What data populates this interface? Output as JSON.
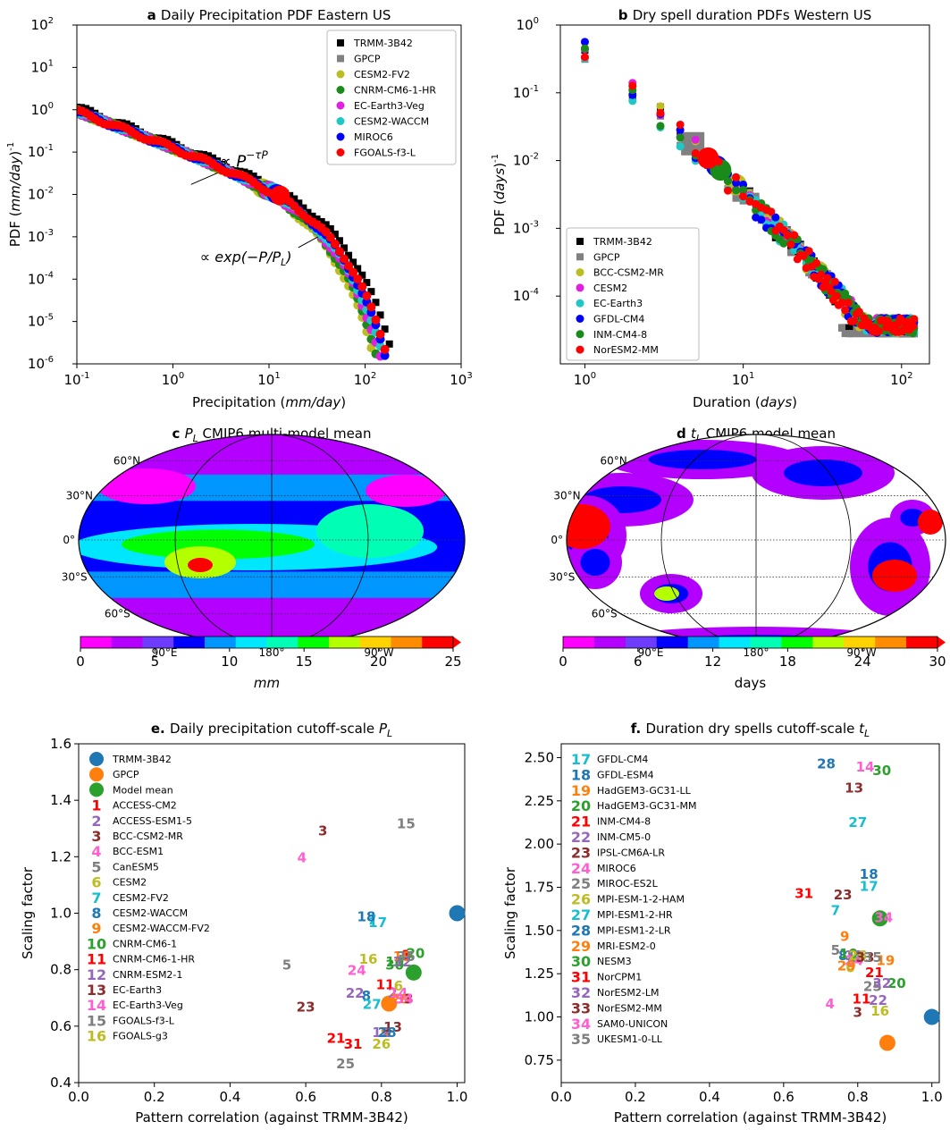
{
  "chart_data": [
    {
      "id": "a",
      "type": "scatter",
      "title_prefix": "a",
      "title": "Daily Precipitation PDF Eastern US",
      "xlabel_pre": "Precipitation (",
      "xlabel_unit": "mm/day",
      "xlabel_post": ")",
      "ylabel_pre": "PDF (",
      "ylabel_unit": "mm/day",
      "ylabel_post": ")",
      "ylabel_exp": "-1",
      "xscale": "log",
      "yscale": "log",
      "xlim": [
        0.1,
        1000
      ],
      "ylim": [
        1e-06,
        100
      ],
      "xticks_exp": [
        "-1",
        "0",
        "1",
        "2",
        "3"
      ],
      "yticks_exp": [
        "-6",
        "-5",
        "-4",
        "-3",
        "-2",
        "-1",
        "0",
        "1",
        "2"
      ],
      "annotations": [
        {
          "text": "∝ P",
          "sup": "−τP",
          "near": [
            1.3,
            0.022
          ]
        },
        {
          "text": "∝ exp(−P/P",
          "sub": "L",
          "near": [
            25,
            0.0011
          ]
        }
      ],
      "legend": "top-right",
      "series": [
        {
          "name": "TRMM-3B42",
          "color": "#000000",
          "marker": "square"
        },
        {
          "name": "GPCP",
          "color": "#808080",
          "marker": "square"
        },
        {
          "name": "CESM2-FV2",
          "color": "#bcbd22",
          "marker": "circle",
          "cutoff": 8.5
        },
        {
          "name": "CNRM-CM6-1-HR",
          "color": "#1a8a1a",
          "marker": "circle",
          "cutoff": 9.5
        },
        {
          "name": "EC-Earth3-Veg",
          "color": "#e01fe0",
          "marker": "circle",
          "cutoff": 10
        },
        {
          "name": "CESM2-WACCM",
          "color": "#1fc7c7",
          "marker": "circle",
          "cutoff": 11
        },
        {
          "name": "MIROC6",
          "color": "#0000ff",
          "marker": "circle",
          "cutoff": 12
        },
        {
          "name": "FGOALS-f3-L",
          "color": "#ff0000",
          "marker": "circle",
          "cutoff": 13
        }
      ]
    },
    {
      "id": "b",
      "type": "scatter",
      "title_prefix": "b",
      "title": "Dry spell duration PDFs Western US",
      "xlabel_pre": "Duration (",
      "xlabel_unit": "days",
      "xlabel_post": ")",
      "ylabel_pre": "PDF (",
      "ylabel_unit": "days",
      "ylabel_post": ")",
      "ylabel_exp": "-1",
      "xscale": "log",
      "yscale": "log",
      "xlim": [
        0.7,
        150
      ],
      "ylim": [
        1e-05,
        1
      ],
      "xticks_exp": [
        "0",
        "1",
        "2"
      ],
      "yticks_exp": [
        "-4",
        "-3",
        "-2",
        "-1",
        "0"
      ],
      "legend": "bottom-left",
      "series": [
        {
          "name": "TRMM-3B42",
          "color": "#000000",
          "marker": "square"
        },
        {
          "name": "GPCP",
          "color": "#808080",
          "marker": "square",
          "cutoff": 4.8
        },
        {
          "name": "BCC-CSM2-MR",
          "color": "#bcbd22",
          "marker": "circle",
          "cutoff": 9
        },
        {
          "name": "CESM2",
          "color": "#e01fe0",
          "marker": "circle"
        },
        {
          "name": "EC-Earth3",
          "color": "#1fc7c7",
          "marker": "circle"
        },
        {
          "name": "GFDL-CM4",
          "color": "#0000ff",
          "marker": "circle",
          "cutoff": 6.8
        },
        {
          "name": "INM-CM4-8",
          "color": "#1a8a1a",
          "marker": "circle",
          "cutoff": 7.2
        },
        {
          "name": "NorESM2-MM",
          "color": "#ff0000",
          "marker": "circle",
          "cutoff": 6
        }
      ]
    },
    {
      "id": "c",
      "type": "heatmap",
      "title_prefix": "c",
      "title_var": "P",
      "title_sub": "L",
      "title": " CMIP6 multi-model mean",
      "lat_labels": [
        "60°N",
        "30°N",
        "0°",
        "30°S",
        "60°S"
      ],
      "lon_labels": [
        "90°E",
        "180°",
        "90°W"
      ],
      "colorbar_ticks": [
        "0",
        "5",
        "10",
        "15",
        "20",
        "25"
      ],
      "colorbar_range": [
        0,
        25
      ],
      "colorbar_label": "mm",
      "colors": [
        "#ff00ff",
        "#b400ff",
        "#6e3cff",
        "#0000ff",
        "#0096ff",
        "#00e6ff",
        "#00ffb4",
        "#00ff00",
        "#b4ff00",
        "#ffd200",
        "#ff8c00",
        "#ff0000"
      ]
    },
    {
      "id": "d",
      "type": "heatmap",
      "title_prefix": "d",
      "title_var": "t",
      "title_sub": "L",
      "title": " CMIP6 model mean",
      "lat_labels": [
        "60°N",
        "30°N",
        "0°",
        "30°S",
        "60°S"
      ],
      "lon_labels": [
        "90°E",
        "180°",
        "90°W"
      ],
      "colorbar_ticks": [
        "0",
        "6",
        "12",
        "18",
        "24",
        "30"
      ],
      "colorbar_range": [
        0,
        30
      ],
      "colorbar_label": "days",
      "colors": [
        "#ff00ff",
        "#b400ff",
        "#6e3cff",
        "#0000ff",
        "#0096ff",
        "#00e6ff",
        "#00ffb4",
        "#00ff00",
        "#b4ff00",
        "#ffd200",
        "#ff8c00",
        "#ff0000"
      ]
    },
    {
      "id": "e",
      "type": "scatter",
      "title_prefix": "e.",
      "title": "Daily precipitation cutoff-scale ",
      "title_var": "P",
      "title_sub": "L",
      "xlabel": "Pattern correlation (against TRMM-3B42)",
      "ylabel": "Scaling factor",
      "xlim": [
        0.0,
        1.02
      ],
      "ylim": [
        0.4,
        1.6
      ],
      "xticks": [
        "0.0",
        "0.2",
        "0.4",
        "0.6",
        "0.8",
        "1.0"
      ],
      "yticks": [
        "0.4",
        "0.6",
        "0.8",
        "1.0",
        "1.2",
        "1.4",
        "1.6"
      ],
      "refs": [
        {
          "name": "TRMM-3B42",
          "color": "#1f77b4",
          "x": 1.0,
          "y": 1.0
        },
        {
          "name": "GPCP",
          "color": "#ff7f0e",
          "x": 0.82,
          "y": 0.68
        },
        {
          "name": "Model mean",
          "color": "#2ca02c",
          "x": 0.885,
          "y": 0.79
        }
      ],
      "models": [
        {
          "n": "1",
          "name": "ACCESS-CM2",
          "color": "#ff0000",
          "x": 0.865,
          "y": 0.855
        },
        {
          "n": "2",
          "name": "ACCESS-ESM1-5",
          "color": "#9467bd",
          "x": 0.83,
          "y": 0.72
        },
        {
          "n": "3",
          "name": "BCC-CSM2-MR",
          "color": "#8c2d2d",
          "x": 0.645,
          "y": 1.295
        },
        {
          "n": "4",
          "name": "BCC-ESM1",
          "color": "#ff5fd0",
          "x": 0.59,
          "y": 1.2
        },
        {
          "n": "5",
          "name": "CanESM5",
          "color": "#7f7f7f",
          "x": 0.55,
          "y": 0.82
        },
        {
          "n": "6",
          "name": "CESM2",
          "color": "#bcbd22",
          "x": 0.845,
          "y": 0.745
        },
        {
          "n": "7",
          "name": "CESM2-FV2",
          "color": "#17becf",
          "x": 0.775,
          "y": 0.98
        },
        {
          "n": "8",
          "name": "CESM2-WACCM",
          "color": "#1f77b4",
          "x": 0.76,
          "y": 0.71
        },
        {
          "n": "9",
          "name": "CESM2-WACCM-FV2",
          "color": "#ff7f0e",
          "x": 0.81,
          "y": 0.58
        },
        {
          "n": "10",
          "name": "CNRM-CM6-1",
          "color": "#2ca02c",
          "x": 0.835,
          "y": 0.83
        },
        {
          "n": "11",
          "name": "CNRM-CM6-1-HR",
          "color": "#ff0000",
          "x": 0.81,
          "y": 0.75
        },
        {
          "n": "12",
          "name": "CNRM-ESM2-1",
          "color": "#9467bd",
          "x": 0.8,
          "y": 0.58
        },
        {
          "n": "13",
          "name": "EC-Earth3",
          "color": "#8c2d2d",
          "x": 0.83,
          "y": 0.6
        },
        {
          "n": "14",
          "name": "EC-Earth3-Veg",
          "color": "#ff5fd0",
          "x": 0.845,
          "y": 0.72
        },
        {
          "n": "15",
          "name": "FGOALS-f3-L",
          "color": "#7f7f7f",
          "x": 0.865,
          "y": 1.32
        },
        {
          "n": "16",
          "name": "FGOALS-g3",
          "color": "#bcbd22",
          "x": 0.765,
          "y": 0.84
        },
        {
          "n": "17",
          "name": "GFDL-CM4",
          "color": "#17becf",
          "x": 0.79,
          "y": 0.97
        },
        {
          "n": "18",
          "name": "GFDL-ESM4",
          "color": "#1f77b4",
          "x": 0.76,
          "y": 0.99
        },
        {
          "n": "19",
          "name": "HadGEM3-GC31-LL",
          "color": "#ff7f0e",
          "x": 0.855,
          "y": 0.85
        },
        {
          "n": "20",
          "name": "HadGEM3-GC31-MM",
          "color": "#2ca02c",
          "x": 0.89,
          "y": 0.86
        },
        {
          "n": "21",
          "name": "INM-CM4-8",
          "color": "#ff0000",
          "x": 0.68,
          "y": 0.56
        },
        {
          "n": "22",
          "name": "INM-CM5-0",
          "color": "#9467bd",
          "x": 0.73,
          "y": 0.72
        },
        {
          "n": "23",
          "name": "IPSL-CM6A-LR",
          "color": "#8c2d2d",
          "x": 0.6,
          "y": 0.67
        },
        {
          "n": "24",
          "name": "MIROC6",
          "color": "#ff5fd0",
          "x": 0.735,
          "y": 0.8
        },
        {
          "n": "25",
          "name": "MIROC-ES2L",
          "color": "#7f7f7f",
          "x": 0.705,
          "y": 0.47
        },
        {
          "n": "26",
          "name": "MPI-ESM-1-2-HAM",
          "color": "#bcbd22",
          "x": 0.8,
          "y": 0.54
        },
        {
          "n": "27",
          "name": "MPI-ESM1-2-HR",
          "color": "#17becf",
          "x": 0.775,
          "y": 0.68
        },
        {
          "n": "28",
          "name": "MPI-ESM1-2-LR",
          "color": "#1f77b4",
          "x": 0.815,
          "y": 0.58
        },
        {
          "n": "29",
          "name": "MRI-ESM2-0",
          "color": "#ff7f0e",
          "x": 0.85,
          "y": 0.7
        },
        {
          "n": "30",
          "name": "NESM3",
          "color": "#2ca02c",
          "x": 0.835,
          "y": 0.82
        },
        {
          "n": "31",
          "name": "NorCPM1",
          "color": "#ff0000",
          "x": 0.725,
          "y": 0.54
        },
        {
          "n": "32",
          "name": "NorESM2-LM",
          "color": "#9467bd",
          "x": 0.855,
          "y": 0.83
        },
        {
          "n": "33",
          "name": "NorESM2-MM",
          "color": "#8c2d2d",
          "x": 0.86,
          "y": 0.7
        },
        {
          "n": "34",
          "name": "SAM0-UNICON",
          "color": "#ff5fd0",
          "x": 0.86,
          "y": 0.7
        },
        {
          "n": "35",
          "name": "UKESM1-0-LL",
          "color": "#7f7f7f",
          "x": 0.865,
          "y": 0.85
        }
      ]
    },
    {
      "id": "f",
      "type": "scatter",
      "title_prefix": "f.",
      "title": "Duration dry spells cutoff-scale ",
      "title_var": "t",
      "title_sub": "L",
      "xlabel": "Pattern correlation (against TRMM-3B42)",
      "ylabel": "Scaling factor",
      "xlim": [
        0.0,
        1.02
      ],
      "ylim": [
        0.62,
        2.58
      ],
      "xticks": [
        "0.0",
        "0.2",
        "0.4",
        "0.6",
        "0.8",
        "1.0"
      ],
      "yticks": [
        "0.75",
        "1.00",
        "1.25",
        "1.50",
        "1.75",
        "2.00",
        "2.25",
        "2.50"
      ],
      "refs": [
        {
          "name": "TRMM-3B42",
          "color": "#1f77b4",
          "x": 1.0,
          "y": 1.0
        },
        {
          "name": "GPCP",
          "color": "#ff7f0e",
          "x": 0.88,
          "y": 0.85
        },
        {
          "name": "Model mean",
          "color": "#2ca02c",
          "x": 0.86,
          "y": 1.57
        }
      ],
      "models": [
        {
          "n": "3",
          "name": "BCC-CSM2-MR",
          "color": "#8c2d2d",
          "x": 0.8,
          "y": 1.03
        },
        {
          "n": "4",
          "name": "BCC-ESM1",
          "color": "#ff5fd0",
          "x": 0.725,
          "y": 1.08
        },
        {
          "n": "5",
          "name": "CanESM5",
          "color": "#7f7f7f",
          "x": 0.74,
          "y": 1.39
        },
        {
          "n": "6",
          "name": "CESM2",
          "color": "#bcbd22",
          "x": 0.78,
          "y": 1.29
        },
        {
          "n": "7",
          "name": "CESM2-FV2",
          "color": "#17becf",
          "x": 0.74,
          "y": 1.62
        },
        {
          "n": "8",
          "name": "CESM2-WACCM",
          "color": "#1f77b4",
          "x": 0.76,
          "y": 1.36
        },
        {
          "n": "9",
          "name": "CESM2-WACCM-FV2",
          "color": "#ff7f0e",
          "x": 0.765,
          "y": 1.47
        },
        {
          "n": "10",
          "name": "CNRM-CM6-1",
          "color": "#2ca02c",
          "x": 0.775,
          "y": 1.37
        },
        {
          "n": "11",
          "name": "CNRM-CM6-1-HR",
          "color": "#ff0000",
          "x": 0.81,
          "y": 1.11
        },
        {
          "n": "12",
          "name": "CNRM-ESM2-1",
          "color": "#9467bd",
          "x": 0.79,
          "y": 1.36
        },
        {
          "n": "13",
          "name": "EC-Earth3",
          "color": "#8c2d2d",
          "x": 0.79,
          "y": 2.33
        },
        {
          "n": "14",
          "name": "EC-Earth3-Veg",
          "color": "#ff5fd0",
          "x": 0.82,
          "y": 2.45
        },
        {
          "n": "15",
          "name": "FGOALS-f3-L",
          "color": "#7f7f7f",
          "x": 0.795,
          "y": 1.35
        },
        {
          "n": "16",
          "name": "FGOALS-g3",
          "color": "#bcbd22",
          "x": 0.86,
          "y": 1.04
        },
        {
          "n": "17",
          "name": "GFDL-CM4",
          "color": "#17becf",
          "x": 0.83,
          "y": 1.76
        },
        {
          "n": "18",
          "name": "GFDL-ESM4",
          "color": "#1f77b4",
          "x": 0.83,
          "y": 1.83
        },
        {
          "n": "19",
          "name": "HadGEM3-GC31-LL",
          "color": "#ff7f0e",
          "x": 0.875,
          "y": 1.33
        },
        {
          "n": "20",
          "name": "HadGEM3-GC31-MM",
          "color": "#2ca02c",
          "x": 0.905,
          "y": 1.2
        },
        {
          "n": "21",
          "name": "INM-CM4-8",
          "color": "#ff0000",
          "x": 0.845,
          "y": 1.26
        },
        {
          "n": "22",
          "name": "INM-CM5-0",
          "color": "#9467bd",
          "x": 0.855,
          "y": 1.1
        },
        {
          "n": "23",
          "name": "IPSL-CM6A-LR",
          "color": "#8c2d2d",
          "x": 0.76,
          "y": 1.71
        },
        {
          "n": "24",
          "name": "MIROC6",
          "color": "#ff5fd0",
          "x": 0.79,
          "y": 1.33
        },
        {
          "n": "25",
          "name": "MIROC-ES2L",
          "color": "#7f7f7f",
          "x": 0.84,
          "y": 1.18
        },
        {
          "n": "26",
          "name": "MPI-ESM-1-2-HAM",
          "color": "#bcbd22",
          "x": 0.8,
          "y": 1.36
        },
        {
          "n": "27",
          "name": "MPI-ESM1-2-HR",
          "color": "#17becf",
          "x": 0.8,
          "y": 2.13
        },
        {
          "n": "28",
          "name": "MPI-ESM1-2-LR",
          "color": "#1f77b4",
          "x": 0.715,
          "y": 2.47
        },
        {
          "n": "29",
          "name": "MRI-ESM2-0",
          "color": "#ff7f0e",
          "x": 0.77,
          "y": 1.3
        },
        {
          "n": "30",
          "name": "NESM3",
          "color": "#2ca02c",
          "x": 0.865,
          "y": 2.43
        },
        {
          "n": "31",
          "name": "NorCPM1",
          "color": "#ff0000",
          "x": 0.655,
          "y": 1.72
        },
        {
          "n": "32",
          "name": "NorESM2-LM",
          "color": "#9467bd",
          "x": 0.865,
          "y": 1.2
        },
        {
          "n": "33",
          "name": "NorESM2-MM",
          "color": "#8c2d2d",
          "x": 0.82,
          "y": 1.35
        },
        {
          "n": "34",
          "name": "SAM0-UNICON",
          "color": "#ff5fd0",
          "x": 0.87,
          "y": 1.58
        },
        {
          "n": "35",
          "name": "UKESM1-0-LL",
          "color": "#7f7f7f",
          "x": 0.84,
          "y": 1.35
        }
      ]
    }
  ]
}
